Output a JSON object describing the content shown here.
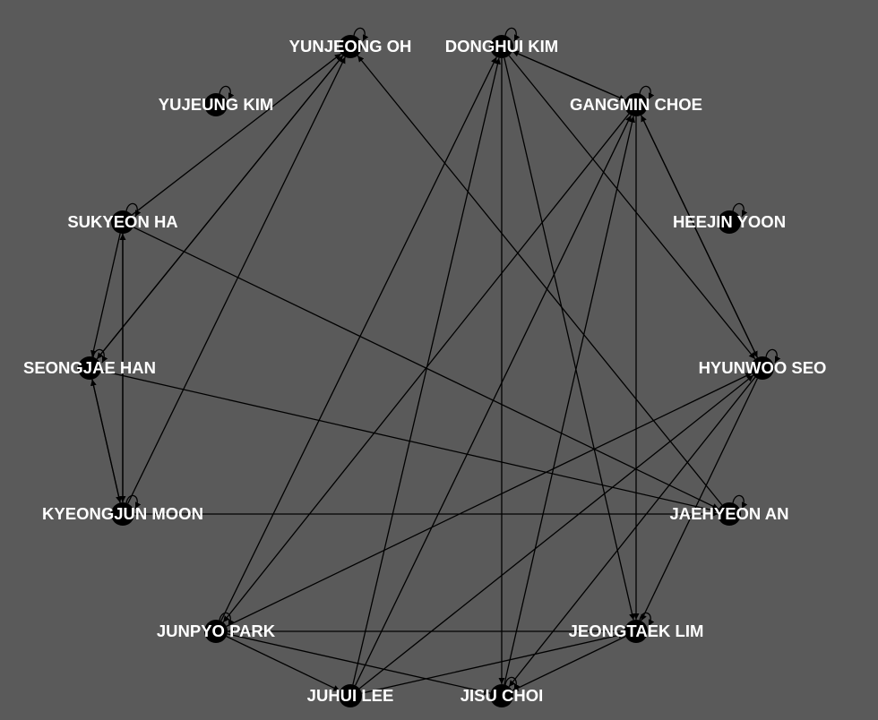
{
  "graph": {
    "background": "#5a5a5a",
    "node_color": "#000000",
    "label_color": "#ffffff",
    "edge_color": "#000000",
    "directed": true,
    "nodes": [
      {
        "id": "yunjeong-oh",
        "label": "YUNJEONG OH",
        "self_loop": true
      },
      {
        "id": "donghui-kim",
        "label": "DONGHUI KIM",
        "self_loop": true
      },
      {
        "id": "gangmin-choe",
        "label": "GANGMIN CHOE",
        "self_loop": true
      },
      {
        "id": "heejin-yoon",
        "label": "HEEJIN YOON",
        "self_loop": true
      },
      {
        "id": "hyunwoo-seo",
        "label": "HYUNWOO SEO",
        "self_loop": true
      },
      {
        "id": "jaehyeon-an",
        "label": "JAEHYEON AN",
        "self_loop": true
      },
      {
        "id": "jeongtaek-lim",
        "label": "JEONGTAEK LIM",
        "self_loop": true
      },
      {
        "id": "jisu-choi",
        "label": "JISU CHOI",
        "self_loop": true
      },
      {
        "id": "juhui-lee",
        "label": "JUHUI LEE",
        "self_loop": false
      },
      {
        "id": "junpyo-park",
        "label": "JUNPYO PARK",
        "self_loop": true
      },
      {
        "id": "kyeongjun-moon",
        "label": "KYEONGJUN MOON",
        "self_loop": true
      },
      {
        "id": "seongjae-han",
        "label": "SEONGJAE HAN",
        "self_loop": true
      },
      {
        "id": "sukyeon-ha",
        "label": "SUKYEON HA",
        "self_loop": true
      },
      {
        "id": "yujeung-kim",
        "label": "YUJEUNG KIM",
        "self_loop": true
      }
    ],
    "edges": [
      {
        "from": "sukyeon-ha",
        "to": "yunjeong-oh"
      },
      {
        "from": "seongjae-han",
        "to": "yunjeong-oh"
      },
      {
        "from": "yunjeong-oh",
        "to": "seongjae-han"
      },
      {
        "from": "kyeongjun-moon",
        "to": "yunjeong-oh"
      },
      {
        "from": "jaehyeon-an",
        "to": "yunjeong-oh"
      },
      {
        "from": "gangmin-choe",
        "to": "donghui-kim"
      },
      {
        "from": "donghui-kim",
        "to": "gangmin-choe"
      },
      {
        "from": "donghui-kim",
        "to": "hyunwoo-seo"
      },
      {
        "from": "donghui-kim",
        "to": "jeongtaek-lim"
      },
      {
        "from": "donghui-kim",
        "to": "jisu-choi"
      },
      {
        "from": "juhui-lee",
        "to": "donghui-kim"
      },
      {
        "from": "junpyo-park",
        "to": "donghui-kim"
      },
      {
        "from": "hyunwoo-seo",
        "to": "gangmin-choe"
      },
      {
        "from": "gangmin-choe",
        "to": "hyunwoo-seo"
      },
      {
        "from": "gangmin-choe",
        "to": "jeongtaek-lim"
      },
      {
        "from": "jisu-choi",
        "to": "gangmin-choe"
      },
      {
        "from": "juhui-lee",
        "to": "gangmin-choe"
      },
      {
        "from": "gangmin-choe",
        "to": "junpyo-park"
      },
      {
        "from": "hyunwoo-seo",
        "to": "jeongtaek-lim"
      },
      {
        "from": "hyunwoo-seo",
        "to": "jisu-choi"
      },
      {
        "from": "juhui-lee",
        "to": "hyunwoo-seo"
      },
      {
        "from": "junpyo-park",
        "to": "hyunwoo-seo"
      },
      {
        "from": "kyeongjun-moon",
        "to": "jaehyeon-an"
      },
      {
        "from": "sukyeon-ha",
        "to": "jaehyeon-an"
      },
      {
        "from": "seongjae-han",
        "to": "jaehyeon-an"
      },
      {
        "from": "jeongtaek-lim",
        "to": "junpyo-park"
      },
      {
        "from": "juhui-lee",
        "to": "jeongtaek-lim"
      },
      {
        "from": "jeongtaek-lim",
        "to": "jisu-choi"
      },
      {
        "from": "junpyo-park",
        "to": "jisu-choi"
      },
      {
        "from": "junpyo-park",
        "to": "juhui-lee"
      },
      {
        "from": "sukyeon-ha",
        "to": "seongjae-han"
      },
      {
        "from": "sukyeon-ha",
        "to": "kyeongjun-moon"
      },
      {
        "from": "kyeongjun-moon",
        "to": "sukyeon-ha"
      },
      {
        "from": "seongjae-han",
        "to": "kyeongjun-moon"
      },
      {
        "from": "kyeongjun-moon",
        "to": "seongjae-han"
      }
    ]
  }
}
